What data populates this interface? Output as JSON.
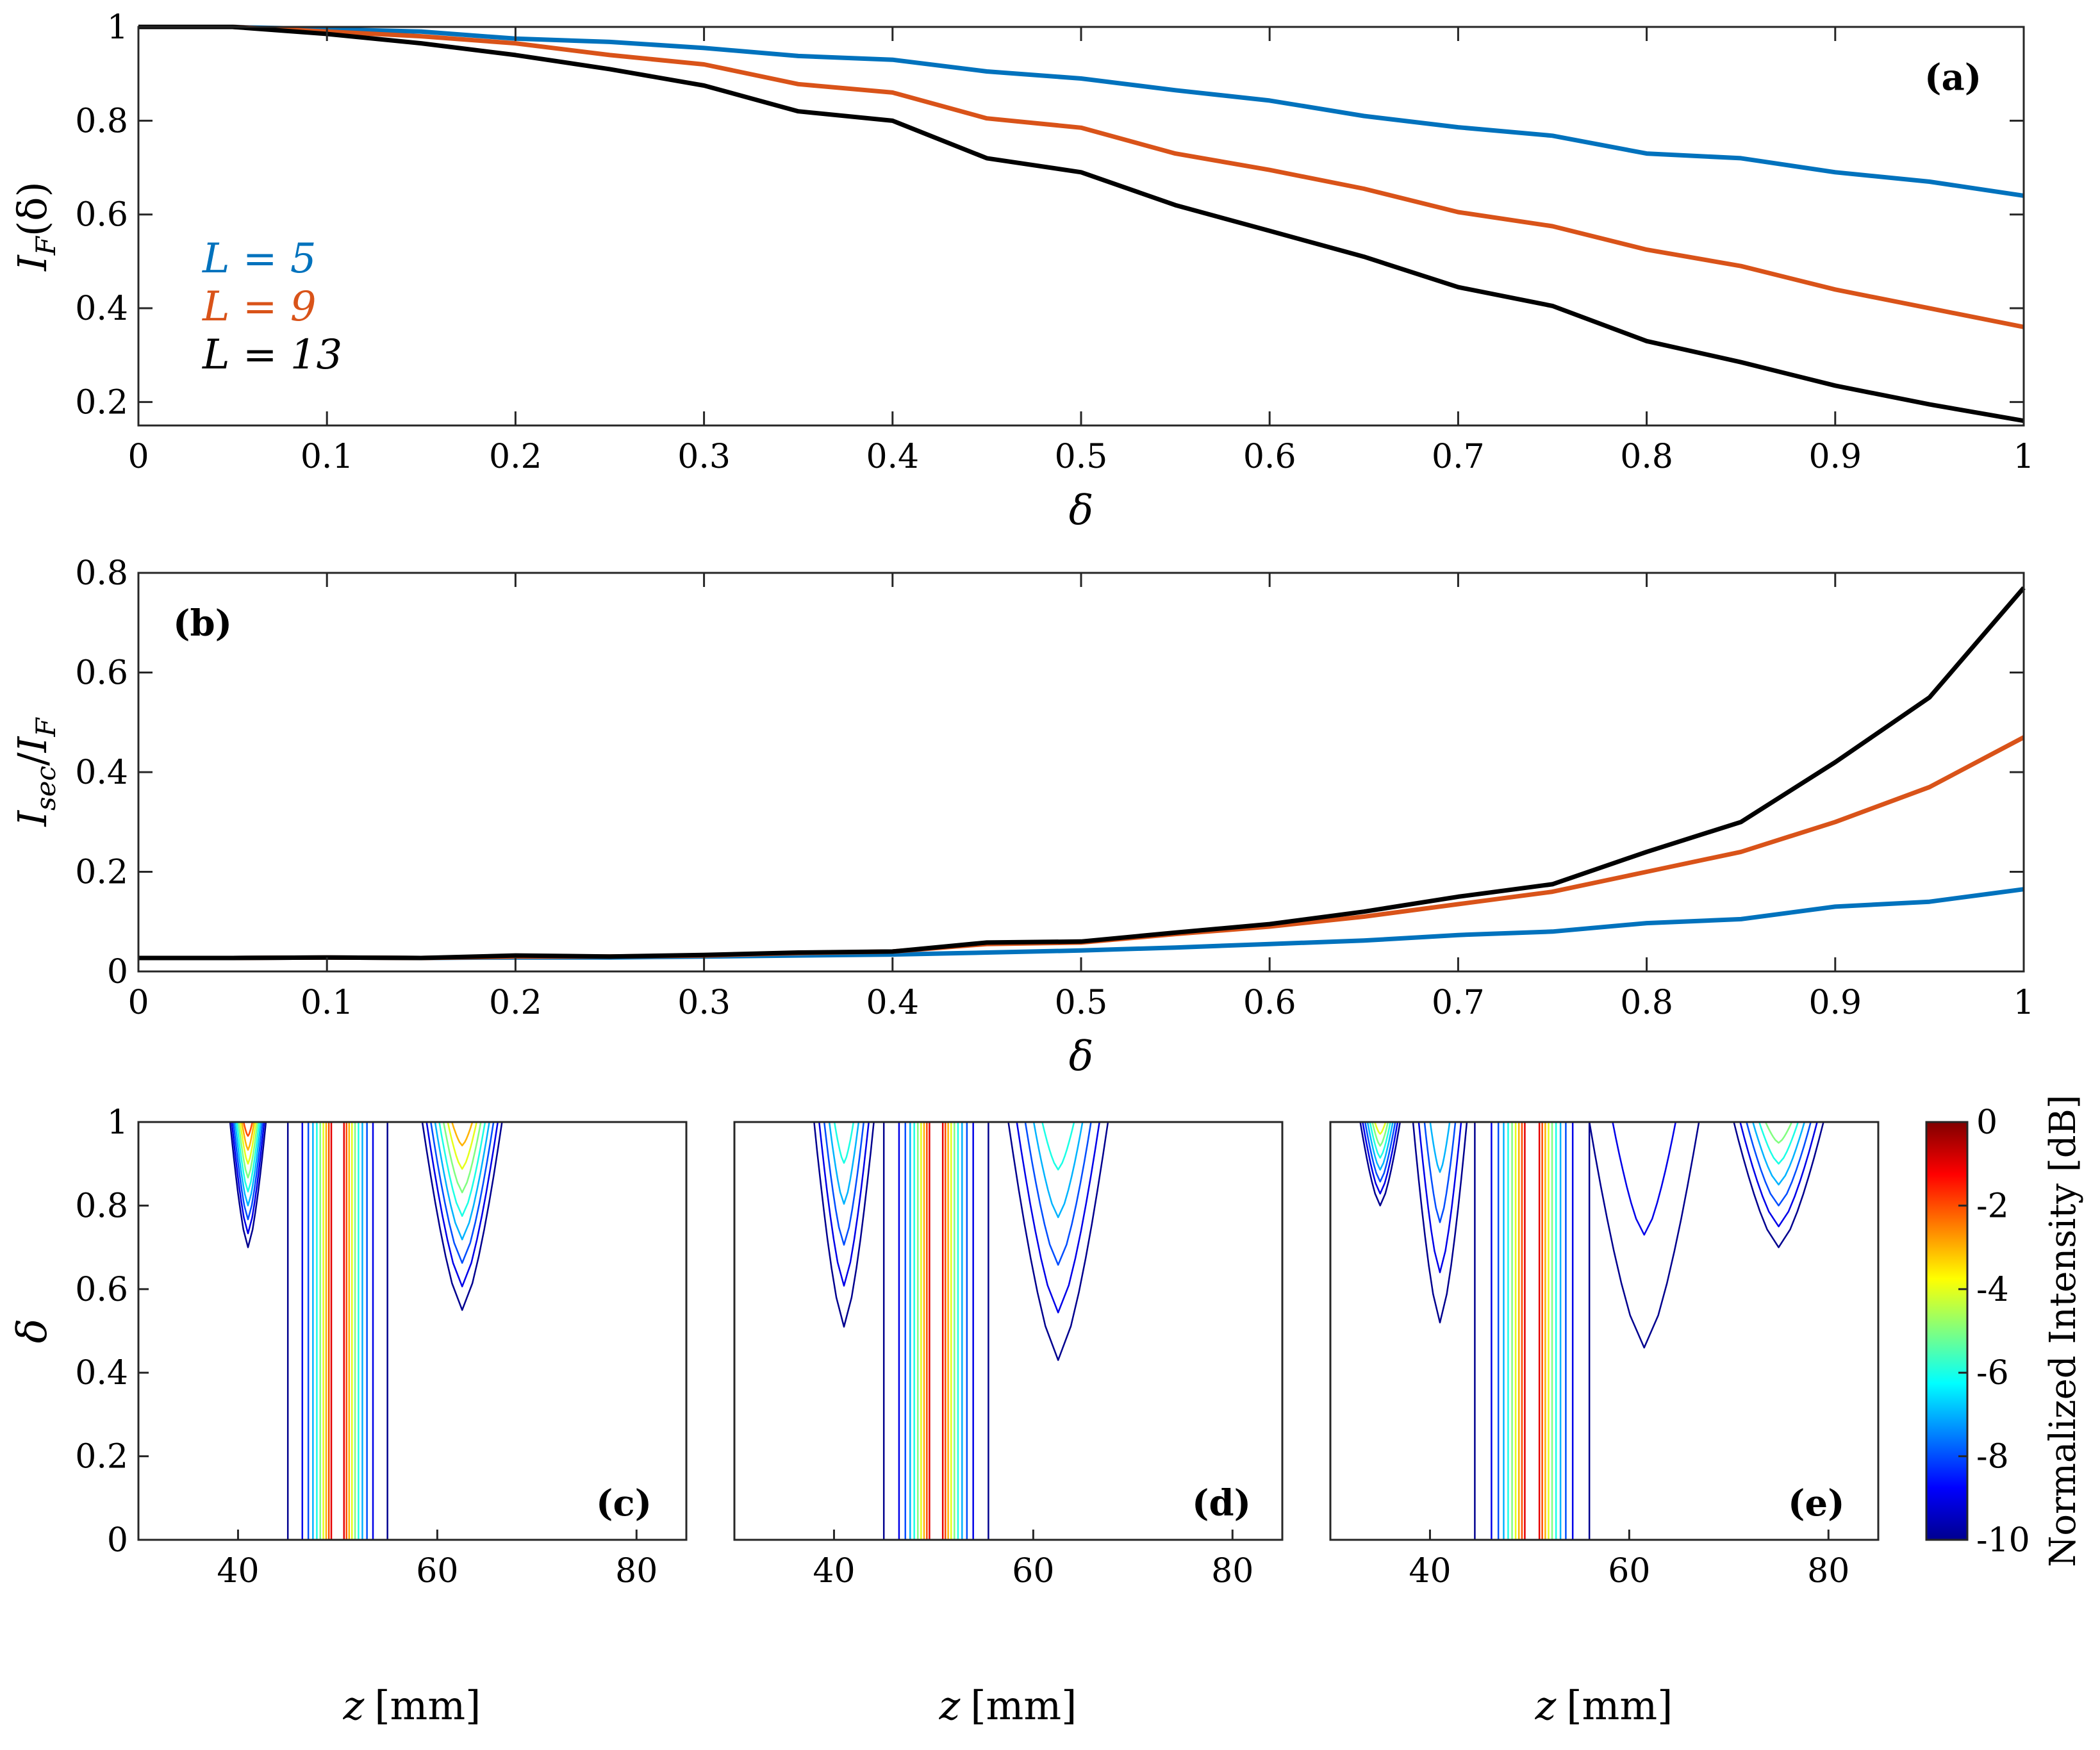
{
  "colors": {
    "L5": "#0072bd",
    "L9": "#d95319",
    "L13": "#000000"
  },
  "chart_data": [
    {
      "id": "a",
      "type": "line",
      "panel_label": "(a)",
      "xlabel": "δ",
      "ylabel": "I_F(δ)",
      "ylabel_main": "I",
      "ylabel_sub": "F",
      "ylabel_tail": "(δ)",
      "xlim": [
        0,
        1
      ],
      "ylim": [
        0.15,
        1
      ],
      "xticks": [
        0,
        0.1,
        0.2,
        0.3,
        0.4,
        0.5,
        0.6,
        0.7,
        0.8,
        0.9,
        1
      ],
      "xtick_labels": [
        "0",
        "0.1",
        "0.2",
        "0.3",
        "0.4",
        "0.5",
        "0.6",
        "0.7",
        "0.8",
        "0.9",
        "1"
      ],
      "yticks": [
        0.2,
        0.4,
        0.6,
        0.8,
        1
      ],
      "ytick_labels": [
        "0.2",
        "0.4",
        "0.6",
        "0.8",
        "1"
      ],
      "legend": {
        "position": "middle-left",
        "entries": [
          "L = 5",
          "L = 9",
          "L = 13"
        ]
      },
      "x": [
        0,
        0.05,
        0.1,
        0.15,
        0.2,
        0.25,
        0.3,
        0.35,
        0.4,
        0.45,
        0.5,
        0.55,
        0.6,
        0.65,
        0.7,
        0.75,
        0.8,
        0.85,
        0.9,
        0.95,
        1
      ],
      "series": [
        {
          "name": "L = 5",
          "color_key": "L5",
          "values": [
            1,
            1,
            0.995,
            0.99,
            0.975,
            0.968,
            0.955,
            0.938,
            0.93,
            0.905,
            0.89,
            0.865,
            0.843,
            0.81,
            0.786,
            0.768,
            0.73,
            0.72,
            0.69,
            0.67,
            0.64
          ]
        },
        {
          "name": "L = 9",
          "color_key": "L9",
          "values": [
            1,
            1,
            0.99,
            0.98,
            0.965,
            0.94,
            0.92,
            0.878,
            0.86,
            0.805,
            0.785,
            0.73,
            0.695,
            0.655,
            0.605,
            0.575,
            0.525,
            0.49,
            0.44,
            0.4,
            0.36
          ]
        },
        {
          "name": "L = 13",
          "color_key": "L13",
          "values": [
            1,
            1,
            0.985,
            0.965,
            0.94,
            0.91,
            0.875,
            0.82,
            0.8,
            0.72,
            0.69,
            0.62,
            0.565,
            0.51,
            0.445,
            0.405,
            0.33,
            0.285,
            0.235,
            0.195,
            0.16
          ]
        }
      ]
    },
    {
      "id": "b",
      "type": "line",
      "panel_label": "(b)",
      "xlabel": "δ",
      "ylabel": "I_sec/I_F",
      "ylabel_main1": "I",
      "ylabel_sub1": "sec",
      "ylabel_slash": "/",
      "ylabel_main2": "I",
      "ylabel_sub2": "F",
      "xlim": [
        0,
        1
      ],
      "ylim": [
        0,
        0.8
      ],
      "xticks": [
        0,
        0.1,
        0.2,
        0.3,
        0.4,
        0.5,
        0.6,
        0.7,
        0.8,
        0.9,
        1
      ],
      "xtick_labels": [
        "0",
        "0.1",
        "0.2",
        "0.3",
        "0.4",
        "0.5",
        "0.6",
        "0.7",
        "0.8",
        "0.9",
        "1"
      ],
      "yticks": [
        0,
        0.2,
        0.4,
        0.6,
        0.8
      ],
      "ytick_labels": [
        "0",
        "0.2",
        "0.4",
        "0.6",
        "0.8"
      ],
      "x": [
        0,
        0.05,
        0.1,
        0.15,
        0.2,
        0.25,
        0.3,
        0.35,
        0.4,
        0.45,
        0.5,
        0.55,
        0.6,
        0.65,
        0.7,
        0.75,
        0.8,
        0.85,
        0.9,
        0.95,
        1
      ],
      "series": [
        {
          "name": "L = 5",
          "color_key": "L5",
          "values": [
            0.027,
            0.027,
            0.028,
            0.027,
            0.028,
            0.028,
            0.03,
            0.032,
            0.034,
            0.038,
            0.042,
            0.048,
            0.055,
            0.062,
            0.073,
            0.08,
            0.097,
            0.105,
            0.13,
            0.14,
            0.165
          ]
        },
        {
          "name": "L = 9",
          "color_key": "L9",
          "values": [
            0.027,
            0.027,
            0.028,
            0.027,
            0.03,
            0.03,
            0.032,
            0.037,
            0.04,
            0.055,
            0.058,
            0.075,
            0.09,
            0.11,
            0.135,
            0.16,
            0.2,
            0.24,
            0.3,
            0.37,
            0.47
          ]
        },
        {
          "name": "L = 13",
          "color_key": "L13",
          "values": [
            0.027,
            0.027,
            0.028,
            0.027,
            0.032,
            0.03,
            0.033,
            0.038,
            0.04,
            0.058,
            0.06,
            0.078,
            0.095,
            0.12,
            0.15,
            0.175,
            0.24,
            0.3,
            0.42,
            0.55,
            0.77
          ]
        }
      ]
    },
    {
      "id": "c",
      "type": "contour",
      "panel_label": "(c)",
      "ylabel": "δ",
      "xlabel_var": "z",
      "xlabel_unit": "[mm]",
      "xlim": [
        30,
        85
      ],
      "ylim": [
        0,
        1
      ],
      "xticks": [
        40,
        60,
        80
      ],
      "xtick_labels": [
        "40",
        "60",
        "80"
      ],
      "yticks": [
        0,
        0.2,
        0.4,
        0.6,
        0.8,
        1
      ],
      "ytick_labels": [
        "0",
        "0.2",
        "0.4",
        "0.6",
        "0.8",
        "1"
      ],
      "main_lobe_z": [
        45,
        55
      ],
      "lobes": [
        {
          "z_center": 41,
          "half_width": 1.8,
          "delta_min": 0.7,
          "peak_level": 8
        },
        {
          "z_center": 62.5,
          "half_width": 4,
          "delta_min": 0.55,
          "peak_level": 7
        }
      ]
    },
    {
      "id": "d",
      "type": "contour",
      "panel_label": "(d)",
      "xlabel_var": "z",
      "xlabel_unit": "[mm]",
      "xlim": [
        30,
        85
      ],
      "ylim": [
        0,
        1
      ],
      "xticks": [
        40,
        60,
        80
      ],
      "xtick_labels": [
        "40",
        "60",
        "80"
      ],
      "main_lobe_z": [
        45,
        55.5
      ],
      "lobes": [
        {
          "z_center": 41,
          "half_width": 3,
          "delta_min": 0.51,
          "peak_level": 4
        },
        {
          "z_center": 62.5,
          "half_width": 5,
          "delta_min": 0.43,
          "peak_level": 4
        }
      ]
    },
    {
      "id": "e",
      "type": "contour",
      "panel_label": "(e)",
      "xlabel_var": "z",
      "xlabel_unit": "[mm]",
      "xlim": [
        30,
        85
      ],
      "ylim": [
        0,
        1
      ],
      "xticks": [
        40,
        60,
        80
      ],
      "xtick_labels": [
        "40",
        "60",
        "80"
      ],
      "main_lobe_z": [
        44.5,
        56
      ],
      "lobes": [
        {
          "z_center": 35,
          "half_width": 2,
          "delta_min": 0.8,
          "peak_level": 6
        },
        {
          "z_center": 41,
          "half_width": 2.7,
          "delta_min": 0.52,
          "peak_level": 3
        },
        {
          "z_center": 61.5,
          "half_width": 5.5,
          "delta_min": 0.46,
          "peak_level": 1
        },
        {
          "z_center": 75,
          "half_width": 4.5,
          "delta_min": 0.7,
          "peak_level": 5
        }
      ]
    }
  ],
  "colorbar": {
    "label": "Normalized Intensity [dB]",
    "range": [
      -10,
      0
    ],
    "ticks": [
      0,
      -2,
      -4,
      -6,
      -8,
      -10
    ],
    "tick_labels": [
      "0",
      "-2",
      "-4",
      "-6",
      "-8",
      "-10"
    ]
  }
}
